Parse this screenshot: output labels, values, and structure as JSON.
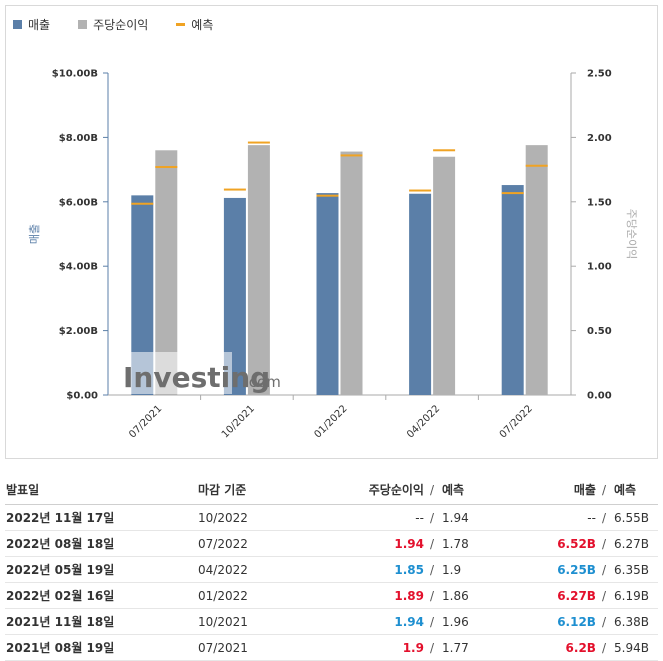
{
  "legend": {
    "revenue": "매출",
    "eps": "주당순이익",
    "forecast": "예측"
  },
  "colors": {
    "revenue": "#5b7fa8",
    "eps": "#b2b2b2",
    "forecast": "#f0a323",
    "beat": "#e3102c",
    "miss": "#1e8fd0"
  },
  "watermark": {
    "brand": "Investing",
    "suffix": ".com"
  },
  "chart_data": {
    "type": "bar",
    "categories": [
      "07/2021",
      "10/2021",
      "01/2022",
      "04/2022",
      "07/2022"
    ],
    "series": [
      {
        "name": "매출",
        "axis": "left",
        "values": [
          6.2,
          6.12,
          6.27,
          6.25,
          6.52
        ],
        "forecast": [
          5.94,
          6.38,
          6.19,
          6.35,
          6.27
        ]
      },
      {
        "name": "주당순이익",
        "axis": "right",
        "values": [
          1.9,
          1.94,
          1.89,
          1.85,
          1.94
        ],
        "forecast": [
          1.77,
          1.96,
          1.86,
          1.9,
          1.78
        ]
      }
    ],
    "ylabel_left": "매출",
    "ylabel_right": "주당순이익",
    "ylim_left": [
      0,
      10
    ],
    "ylim_right": [
      0,
      2.5
    ],
    "left_ticks": [
      "$0.00",
      "$2.00B",
      "$4.00B",
      "$6.00B",
      "$8.00B",
      "$10.00B"
    ],
    "right_ticks": [
      "0.00",
      "0.50",
      "1.00",
      "1.50",
      "2.00",
      "2.50"
    ],
    "grid": false
  },
  "table": {
    "headers": {
      "date": "발표일",
      "period": "마감 기준",
      "eps": "주당순이익",
      "eps_forecast": "예측",
      "revenue": "매출",
      "revenue_forecast": "예측",
      "sep": "/"
    },
    "rows": [
      {
        "date": "2022년 11월 17일",
        "period": "10/2022",
        "eps": "--",
        "eps_status": "none",
        "eps_forecast": "1.94",
        "revenue": "--",
        "revenue_status": "none",
        "revenue_forecast": "6.55B"
      },
      {
        "date": "2022년 08월 18일",
        "period": "07/2022",
        "eps": "1.94",
        "eps_status": "beat",
        "eps_forecast": "1.78",
        "revenue": "6.52B",
        "revenue_status": "beat",
        "revenue_forecast": "6.27B"
      },
      {
        "date": "2022년 05월 19일",
        "period": "04/2022",
        "eps": "1.85",
        "eps_status": "miss",
        "eps_forecast": "1.9",
        "revenue": "6.25B",
        "revenue_status": "miss",
        "revenue_forecast": "6.35B"
      },
      {
        "date": "2022년 02월 16일",
        "period": "01/2022",
        "eps": "1.89",
        "eps_status": "beat",
        "eps_forecast": "1.86",
        "revenue": "6.27B",
        "revenue_status": "beat",
        "revenue_forecast": "6.19B"
      },
      {
        "date": "2021년 11월 18일",
        "period": "10/2021",
        "eps": "1.94",
        "eps_status": "miss",
        "eps_forecast": "1.96",
        "revenue": "6.12B",
        "revenue_status": "miss",
        "revenue_forecast": "6.38B"
      },
      {
        "date": "2021년 08월 19일",
        "period": "07/2021",
        "eps": "1.9",
        "eps_status": "beat",
        "eps_forecast": "1.77",
        "revenue": "6.2B",
        "revenue_status": "beat",
        "revenue_forecast": "5.94B"
      }
    ]
  }
}
